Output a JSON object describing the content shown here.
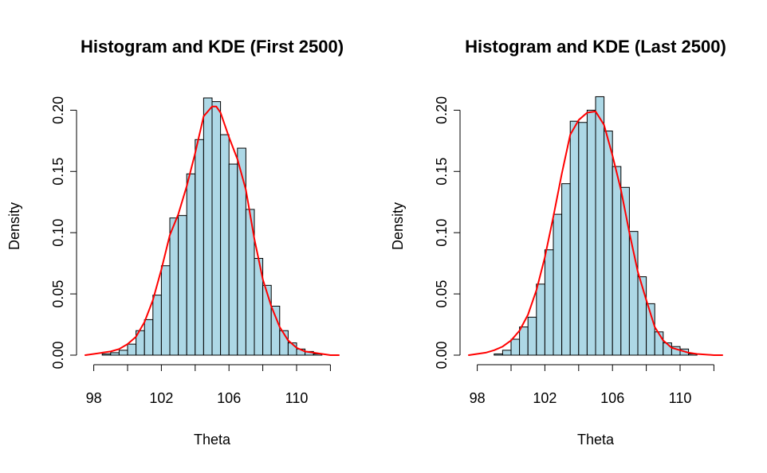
{
  "colors": {
    "bar_fill": "#add8e6",
    "bar_stroke": "#000000",
    "kde_line": "#ff0000",
    "axis": "#000000",
    "background": "#ffffff"
  },
  "chart_data": [
    {
      "type": "bar",
      "title": "Histogram and KDE (First 2500)",
      "xlabel": "Theta",
      "ylabel": "Density",
      "xlim": [
        97.5,
        112.5
      ],
      "ylim": [
        0,
        0.21
      ],
      "xticks": [
        98,
        100,
        102,
        104,
        106,
        108,
        110,
        112
      ],
      "xtick_labels": [
        "98",
        "",
        "102",
        "",
        "106",
        "",
        "110",
        ""
      ],
      "yticks": [
        0.0,
        0.05,
        0.1,
        0.15,
        0.2
      ],
      "ytick_labels": [
        "0.00",
        "0.05",
        "0.10",
        "0.15",
        "0.20"
      ],
      "grid": false,
      "bin_width": 0.5,
      "bins": [
        {
          "x0": 98.5,
          "value": 0.001
        },
        {
          "x0": 99.0,
          "value": 0.002
        },
        {
          "x0": 99.5,
          "value": 0.004
        },
        {
          "x0": 100.0,
          "value": 0.009
        },
        {
          "x0": 100.5,
          "value": 0.02
        },
        {
          "x0": 101.0,
          "value": 0.029
        },
        {
          "x0": 101.5,
          "value": 0.049
        },
        {
          "x0": 102.0,
          "value": 0.073
        },
        {
          "x0": 102.5,
          "value": 0.112
        },
        {
          "x0": 103.0,
          "value": 0.114
        },
        {
          "x0": 103.5,
          "value": 0.148
        },
        {
          "x0": 104.0,
          "value": 0.176
        },
        {
          "x0": 104.5,
          "value": 0.21
        },
        {
          "x0": 105.0,
          "value": 0.207
        },
        {
          "x0": 105.5,
          "value": 0.18
        },
        {
          "x0": 106.0,
          "value": 0.156
        },
        {
          "x0": 106.5,
          "value": 0.169
        },
        {
          "x0": 107.0,
          "value": 0.119
        },
        {
          "x0": 107.5,
          "value": 0.079
        },
        {
          "x0": 108.0,
          "value": 0.057
        },
        {
          "x0": 108.5,
          "value": 0.04
        },
        {
          "x0": 109.0,
          "value": 0.02
        },
        {
          "x0": 109.5,
          "value": 0.01
        },
        {
          "x0": 110.0,
          "value": 0.005
        },
        {
          "x0": 110.5,
          "value": 0.003
        },
        {
          "x0": 111.0,
          "value": 0.001
        }
      ],
      "series": [
        {
          "type": "line",
          "x": [
            97.5,
            98.5,
            99.0,
            99.5,
            100.0,
            100.5,
            101.0,
            101.5,
            102.0,
            102.5,
            103.0,
            103.5,
            104.0,
            104.5,
            105.0,
            105.25,
            105.5,
            106.0,
            106.5,
            107.0,
            107.5,
            108.0,
            108.5,
            109.0,
            109.5,
            110.0,
            110.5,
            111.0,
            112.0,
            112.5
          ],
          "y": [
            0.0,
            0.002,
            0.003,
            0.005,
            0.009,
            0.015,
            0.027,
            0.045,
            0.07,
            0.098,
            0.115,
            0.138,
            0.165,
            0.195,
            0.203,
            0.203,
            0.198,
            0.178,
            0.16,
            0.135,
            0.095,
            0.062,
            0.04,
            0.023,
            0.012,
            0.006,
            0.003,
            0.002,
            0.0,
            0.0
          ]
        }
      ]
    },
    {
      "type": "bar",
      "title": "Histogram and KDE (Last 2500)",
      "xlabel": "Theta",
      "ylabel": "Density",
      "xlim": [
        97.5,
        112.5
      ],
      "ylim": [
        0,
        0.21
      ],
      "xticks": [
        98,
        100,
        102,
        104,
        106,
        108,
        110,
        112
      ],
      "xtick_labels": [
        "98",
        "",
        "102",
        "",
        "106",
        "",
        "110",
        ""
      ],
      "yticks": [
        0.0,
        0.05,
        0.1,
        0.15,
        0.2
      ],
      "ytick_labels": [
        "0.00",
        "0.05",
        "0.10",
        "0.15",
        "0.20"
      ],
      "grid": false,
      "bin_width": 0.5,
      "bins": [
        {
          "x0": 99.0,
          "value": 0.001
        },
        {
          "x0": 99.5,
          "value": 0.004
        },
        {
          "x0": 100.0,
          "value": 0.013
        },
        {
          "x0": 100.5,
          "value": 0.023
        },
        {
          "x0": 101.0,
          "value": 0.031
        },
        {
          "x0": 101.5,
          "value": 0.058
        },
        {
          "x0": 102.0,
          "value": 0.086
        },
        {
          "x0": 102.5,
          "value": 0.115
        },
        {
          "x0": 103.0,
          "value": 0.14
        },
        {
          "x0": 103.5,
          "value": 0.191
        },
        {
          "x0": 104.0,
          "value": 0.19
        },
        {
          "x0": 104.5,
          "value": 0.2
        },
        {
          "x0": 105.0,
          "value": 0.211
        },
        {
          "x0": 105.5,
          "value": 0.183
        },
        {
          "x0": 106.0,
          "value": 0.154
        },
        {
          "x0": 106.5,
          "value": 0.137
        },
        {
          "x0": 107.0,
          "value": 0.101
        },
        {
          "x0": 107.5,
          "value": 0.064
        },
        {
          "x0": 108.0,
          "value": 0.042
        },
        {
          "x0": 108.5,
          "value": 0.019
        },
        {
          "x0": 109.0,
          "value": 0.01
        },
        {
          "x0": 109.5,
          "value": 0.007
        },
        {
          "x0": 110.0,
          "value": 0.005
        },
        {
          "x0": 110.5,
          "value": 0.001
        }
      ],
      "series": [
        {
          "type": "line",
          "x": [
            97.5,
            98.5,
            99.0,
            99.5,
            100.0,
            100.5,
            101.0,
            101.5,
            102.0,
            102.5,
            103.0,
            103.5,
            104.0,
            104.5,
            105.0,
            105.5,
            106.0,
            106.5,
            107.0,
            107.5,
            108.0,
            108.5,
            109.0,
            109.5,
            110.0,
            110.5,
            111.0,
            112.0,
            112.5
          ],
          "y": [
            0.0,
            0.002,
            0.004,
            0.007,
            0.012,
            0.02,
            0.033,
            0.053,
            0.08,
            0.113,
            0.148,
            0.18,
            0.192,
            0.198,
            0.199,
            0.188,
            0.163,
            0.135,
            0.1,
            0.068,
            0.045,
            0.023,
            0.012,
            0.006,
            0.004,
            0.002,
            0.001,
            0.0,
            0.0
          ]
        }
      ]
    }
  ]
}
